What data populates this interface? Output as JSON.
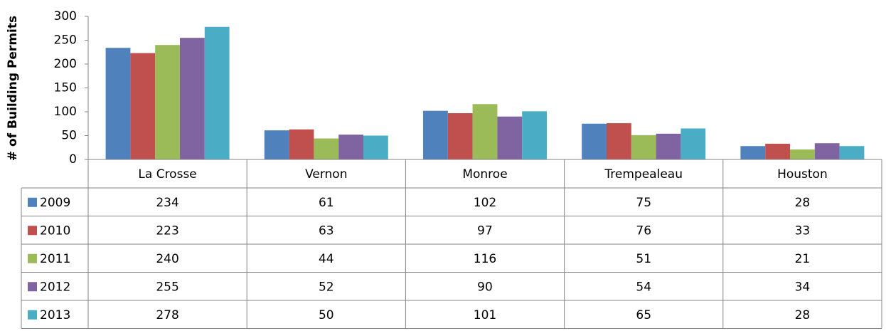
{
  "chart_data": {
    "type": "bar",
    "y_label": "# of Building Permits",
    "categories": [
      "La Crosse",
      "Vernon",
      "Monroe",
      "Trempealeau",
      "Houston"
    ],
    "series": [
      {
        "name": "2009",
        "color": "#4f81bd",
        "values": [
          234,
          61,
          102,
          75,
          28
        ]
      },
      {
        "name": "2010",
        "color": "#c0504d",
        "values": [
          223,
          63,
          97,
          76,
          33
        ]
      },
      {
        "name": "2011",
        "color": "#9bbb59",
        "values": [
          240,
          44,
          116,
          51,
          21
        ]
      },
      {
        "name": "2012",
        "color": "#8064a2",
        "values": [
          255,
          52,
          90,
          54,
          34
        ]
      },
      {
        "name": "2013",
        "color": "#4bacc6",
        "values": [
          278,
          50,
          101,
          65,
          28
        ]
      }
    ],
    "ylim": [
      0,
      300
    ],
    "yticks": [
      0,
      50,
      100,
      150,
      200,
      250,
      300
    ],
    "grid": false
  }
}
